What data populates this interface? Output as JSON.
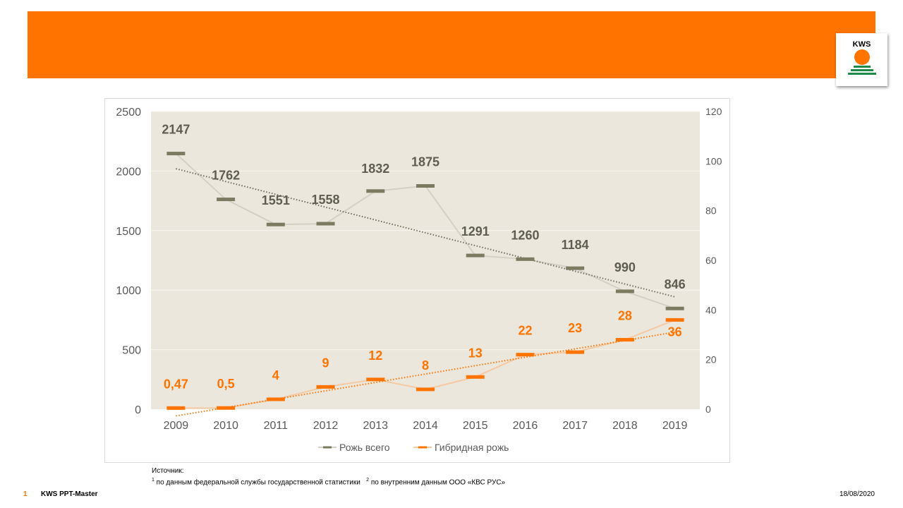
{
  "header": {
    "logo_text": "KWS",
    "brand_color": "#ff7300",
    "logo_green": "#1e8a4a"
  },
  "chart_data": {
    "type": "line",
    "title": "",
    "categories": [
      "2009",
      "2010",
      "2011",
      "2012",
      "2013",
      "2014",
      "2015",
      "2016",
      "2017",
      "2018",
      "2019"
    ],
    "series": [
      {
        "name": "Рожь всего",
        "axis": "left",
        "values": [
          2147,
          1762,
          1551,
          1558,
          1832,
          1875,
          1291,
          1260,
          1184,
          990,
          846
        ],
        "labels": [
          "2147",
          "1762",
          "1551",
          "1558",
          "1832",
          "1875",
          "1291",
          "1260",
          "1184",
          "990",
          "846"
        ],
        "marker_color": "#7b7b62",
        "line_color": "#d3d0c6",
        "label_color": "#5e5e50",
        "trend_color": "#6e6e5c"
      },
      {
        "name": "Гибридная рожь",
        "axis": "right",
        "values": [
          0.47,
          0.5,
          4,
          9,
          12,
          8,
          13,
          22,
          23,
          28,
          36
        ],
        "labels": [
          "0,47",
          "0,5",
          "4",
          "9",
          "12",
          "8",
          "13",
          "22",
          "23",
          "28",
          "36"
        ],
        "marker_color": "#ff7300",
        "line_color": "#f6c9a2",
        "label_color": "#ff7300",
        "trend_color": "#ff7300"
      }
    ],
    "y_left": {
      "min": 0,
      "max": 2500,
      "ticks": [
        0,
        500,
        1000,
        1500,
        2000,
        2500
      ]
    },
    "y_right": {
      "min": 0,
      "max": 120,
      "ticks": [
        0,
        20,
        40,
        60,
        80,
        100,
        120
      ]
    },
    "plot_bg": "#ebe7dc",
    "gridline_color": "#f7f5ef",
    "legend_position": "bottom"
  },
  "source": {
    "heading": "Источник:",
    "note1_marker": "1",
    "note1_text": " по данным федеральной службы государственной статистики",
    "note2_marker": "2",
    "note2_text": "по внутренним данным ООО «КВС РУС»"
  },
  "footer": {
    "page_number": "1",
    "title": "KWS PPT-Master",
    "date": "18/08/2020"
  }
}
